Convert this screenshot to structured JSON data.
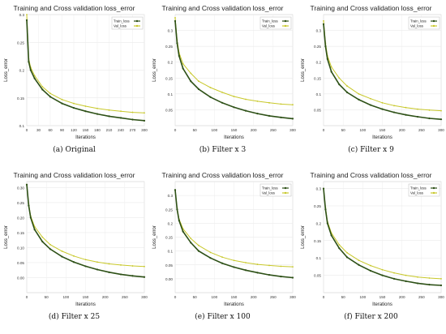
{
  "chart_data": [
    {
      "type": "line",
      "title": "Training and Cross validation loss_error",
      "caption": "(a) Original",
      "xlabel": "Iterations",
      "ylabel": "Loss_error",
      "xlim": [
        0,
        300
      ],
      "ylim": [
        0.1,
        0.3
      ],
      "xticks": [
        0,
        30,
        60,
        90,
        120,
        150,
        180,
        210,
        240,
        270,
        300
      ],
      "yticks": [
        0.1,
        0.15,
        0.2,
        0.25,
        0.3
      ],
      "ytick_labels": [
        "0.1",
        "0.15",
        "0.2",
        "0.25",
        "0.3"
      ],
      "grid": true,
      "legend": "top-right",
      "x": [
        0,
        5,
        10,
        20,
        40,
        60,
        90,
        120,
        150,
        180,
        210,
        240,
        270,
        300
      ],
      "series": [
        {
          "name": "Train_loss",
          "color": "#2d5016",
          "values": [
            0.29,
            0.215,
            0.2,
            0.185,
            0.165,
            0.152,
            0.14,
            0.132,
            0.126,
            0.121,
            0.117,
            0.114,
            0.111,
            0.109
          ]
        },
        {
          "name": "Val_loss",
          "color": "#c8c82a",
          "values": [
            0.3,
            0.22,
            0.205,
            0.19,
            0.17,
            0.158,
            0.147,
            0.14,
            0.135,
            0.131,
            0.128,
            0.126,
            0.124,
            0.123
          ]
        }
      ]
    },
    {
      "type": "line",
      "title": "Training and Cross validation loss_error",
      "caption": "(b) Filter x 3",
      "xlabel": "Iterations",
      "ylabel": "Loss_error",
      "xlim": [
        0,
        300
      ],
      "ylim": [
        0,
        0.35
      ],
      "xticks": [
        0,
        50,
        100,
        150,
        200,
        250,
        300
      ],
      "yticks": [
        0.05,
        0.1,
        0.15,
        0.2,
        0.25,
        0.3
      ],
      "ytick_labels": [
        "0.05",
        "0.1",
        "0.15",
        "0.2",
        "0.25",
        "0.3"
      ],
      "grid": true,
      "legend": "top-right",
      "x": [
        0,
        5,
        10,
        20,
        40,
        60,
        90,
        120,
        150,
        180,
        210,
        240,
        270,
        300
      ],
      "series": [
        {
          "name": "Train_loss",
          "color": "#2d5016",
          "values": [
            0.33,
            0.26,
            0.22,
            0.18,
            0.14,
            0.115,
            0.09,
            0.072,
            0.058,
            0.047,
            0.038,
            0.031,
            0.026,
            0.022
          ]
        },
        {
          "name": "Val_loss",
          "color": "#c8c82a",
          "values": [
            0.34,
            0.27,
            0.23,
            0.195,
            0.165,
            0.14,
            0.12,
            0.105,
            0.092,
            0.083,
            0.077,
            0.072,
            0.068,
            0.066
          ]
        }
      ]
    },
    {
      "type": "line",
      "title": "Training and Cross validation loss_error",
      "caption": "(c) Filter x 9",
      "xlabel": "Iterations",
      "ylabel": "Loss_error",
      "xlim": [
        0,
        300
      ],
      "ylim": [
        0,
        0.35
      ],
      "xticks": [
        0,
        50,
        100,
        150,
        200,
        250,
        300
      ],
      "yticks": [
        0.05,
        0.1,
        0.15,
        0.2,
        0.25,
        0.3
      ],
      "ytick_labels": [
        "0.05",
        "0.1",
        "0.15",
        "0.2",
        "0.25",
        "0.3"
      ],
      "grid": true,
      "legend": "top-right",
      "x": [
        0,
        5,
        10,
        20,
        40,
        60,
        90,
        120,
        150,
        180,
        210,
        240,
        270,
        300
      ],
      "series": [
        {
          "name": "Train_loss",
          "color": "#2d5016",
          "values": [
            0.32,
            0.25,
            0.21,
            0.17,
            0.13,
            0.105,
            0.082,
            0.065,
            0.052,
            0.042,
            0.034,
            0.028,
            0.023,
            0.02
          ]
        },
        {
          "name": "Val_loss",
          "color": "#c8c82a",
          "values": [
            0.33,
            0.26,
            0.22,
            0.185,
            0.15,
            0.125,
            0.1,
            0.085,
            0.072,
            0.063,
            0.057,
            0.052,
            0.049,
            0.047
          ]
        }
      ]
    },
    {
      "type": "line",
      "title": "Training and Cross validation loss_error",
      "caption": "(d) Filter x 25",
      "xlabel": "Iterations",
      "ylabel": "Loss_error",
      "xlim": [
        0,
        300
      ],
      "ylim": [
        -0.05,
        0.32
      ],
      "xticks": [
        0,
        50,
        100,
        150,
        200,
        250,
        300
      ],
      "yticks": [
        0,
        0.05,
        0.1,
        0.15,
        0.2,
        0.25,
        0.3
      ],
      "ytick_labels": [
        "0.00",
        "0.05",
        "0.10",
        "0.15",
        "0.20",
        "0.25",
        "0.30"
      ],
      "grid": true,
      "legend": "none",
      "x": [
        0,
        5,
        10,
        20,
        40,
        60,
        90,
        120,
        150,
        180,
        210,
        240,
        270,
        300
      ],
      "series": [
        {
          "name": "Train_loss",
          "color": "#2d5016",
          "values": [
            0.31,
            0.24,
            0.2,
            0.16,
            0.12,
            0.095,
            0.07,
            0.052,
            0.038,
            0.027,
            0.018,
            0.011,
            0.006,
            0.002
          ]
        },
        {
          "name": "Val_loss",
          "color": "#c8c82a",
          "values": [
            0.31,
            0.245,
            0.205,
            0.17,
            0.135,
            0.11,
            0.088,
            0.072,
            0.06,
            0.052,
            0.046,
            0.042,
            0.039,
            0.037
          ]
        }
      ]
    },
    {
      "type": "line",
      "title": "Training and Cross validation loss_error",
      "caption": "(e) Filter x 100",
      "xlabel": "Iterations",
      "ylabel": "Loss_error",
      "xlim": [
        0,
        300
      ],
      "ylim": [
        -0.05,
        0.35
      ],
      "xticks": [
        0,
        50,
        100,
        150,
        200,
        250,
        300
      ],
      "yticks": [
        0,
        0.05,
        0.1,
        0.15,
        0.2,
        0.25,
        0.3
      ],
      "ytick_labels": [
        "0.00",
        "0.05",
        "0.1",
        "0.15",
        "0.2",
        "0.25",
        "0.3"
      ],
      "grid": true,
      "legend": "top-right",
      "x": [
        0,
        5,
        10,
        20,
        40,
        60,
        90,
        120,
        150,
        180,
        210,
        240,
        270,
        300
      ],
      "series": [
        {
          "name": "Train_loss",
          "color": "#2d5016",
          "values": [
            0.32,
            0.25,
            0.21,
            0.17,
            0.13,
            0.1,
            0.075,
            0.056,
            0.042,
            0.031,
            0.022,
            0.014,
            0.008,
            0.004
          ]
        },
        {
          "name": "Val_loss",
          "color": "#c8c82a",
          "values": [
            0.32,
            0.255,
            0.215,
            0.18,
            0.145,
            0.12,
            0.095,
            0.078,
            0.066,
            0.058,
            0.052,
            0.048,
            0.045,
            0.043
          ]
        }
      ]
    },
    {
      "type": "line",
      "title": "Training and Cross validation loss_error",
      "caption": "(f) Filter x 200",
      "xlabel": "Iterations",
      "ylabel": "Loss_error",
      "xlim": [
        0,
        300
      ],
      "ylim": [
        0,
        0.32
      ],
      "xticks": [
        0,
        50,
        100,
        150,
        200,
        250,
        300
      ],
      "yticks": [
        0.05,
        0.1,
        0.15,
        0.2,
        0.25,
        0.3
      ],
      "ytick_labels": [
        "0.05",
        "0.1",
        "0.15",
        "0.2",
        "0.25",
        "0.3"
      ],
      "grid": true,
      "legend": "top-right",
      "x": [
        0,
        5,
        10,
        20,
        40,
        60,
        90,
        120,
        150,
        180,
        210,
        240,
        270,
        300
      ],
      "series": [
        {
          "name": "Train_loss",
          "color": "#2d5016",
          "values": [
            0.3,
            0.24,
            0.2,
            0.165,
            0.128,
            0.102,
            0.08,
            0.063,
            0.05,
            0.04,
            0.033,
            0.027,
            0.023,
            0.021
          ]
        },
        {
          "name": "Val_loss",
          "color": "#c8c82a",
          "values": [
            0.3,
            0.245,
            0.205,
            0.172,
            0.138,
            0.115,
            0.093,
            0.078,
            0.066,
            0.057,
            0.05,
            0.045,
            0.042,
            0.04
          ]
        }
      ]
    }
  ]
}
